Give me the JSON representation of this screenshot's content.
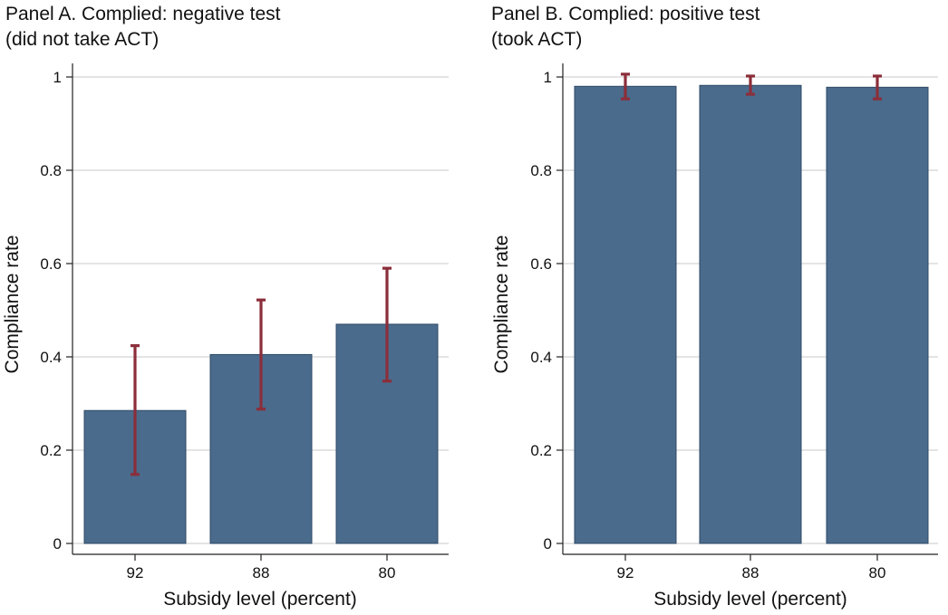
{
  "chart_data": [
    {
      "type": "bar",
      "title": "Panel A. Complied: negative test",
      "subtitle": "(did not take ACT)",
      "xlabel": "Subsidy level (percent)",
      "ylabel": "Compliance rate",
      "categories": [
        "92",
        "88",
        "80"
      ],
      "values": [
        0.285,
        0.405,
        0.47
      ],
      "error_low": [
        0.148,
        0.288,
        0.348
      ],
      "error_high": [
        0.424,
        0.522,
        0.59
      ],
      "ylim": [
        0,
        1
      ],
      "yticks": [
        0,
        0.2,
        0.4,
        0.6,
        0.8,
        1
      ],
      "ytick_labels": [
        "0",
        "0.2",
        "0.4",
        "0.6",
        "0.8",
        "1"
      ],
      "grid": true
    },
    {
      "type": "bar",
      "title": "Panel B. Complied: positive test",
      "subtitle": "(took ACT)",
      "xlabel": "Subsidy level (percent)",
      "ylabel": "Compliance rate",
      "categories": [
        "92",
        "88",
        "80"
      ],
      "values": [
        0.98,
        0.982,
        0.978
      ],
      "error_low": [
        0.953,
        0.963,
        0.953
      ],
      "error_high": [
        1.006,
        1.002,
        1.002
      ],
      "ylim": [
        0,
        1
      ],
      "yticks": [
        0,
        0.2,
        0.4,
        0.6,
        0.8,
        1
      ],
      "ytick_labels": [
        "0",
        "0.2",
        "0.4",
        "0.6",
        "0.8",
        "1"
      ],
      "grid": true
    }
  ],
  "colors": {
    "bar_fill": "#4a6b8c",
    "bar_stroke": "#2f4a66",
    "error_bar": "#8b2e3a",
    "grid": "#c8c8c8",
    "axis": "#222222"
  }
}
